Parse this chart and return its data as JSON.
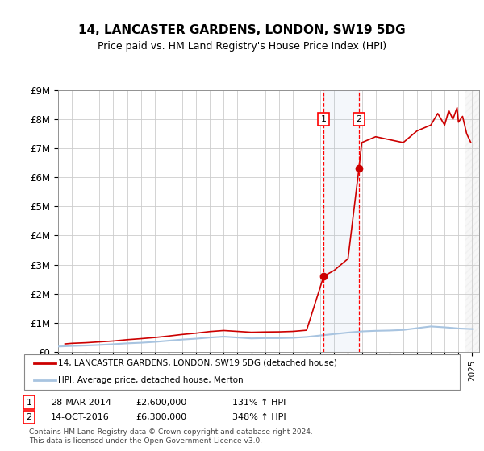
{
  "title": "14, LANCASTER GARDENS, LONDON, SW19 5DG",
  "subtitle": "Price paid vs. HM Land Registry's House Price Index (HPI)",
  "ylabel": "",
  "ylim": [
    0,
    9000000
  ],
  "yticks": [
    0,
    1000000,
    2000000,
    3000000,
    4000000,
    5000000,
    6000000,
    7000000,
    8000000,
    9000000
  ],
  "ytick_labels": [
    "£0",
    "£1M",
    "£2M",
    "£3M",
    "£4M",
    "£5M",
    "£6M",
    "£7M",
    "£8M",
    "£9M"
  ],
  "hpi_color": "#a8c4e0",
  "price_color": "#cc0000",
  "sale1_year": 2014.24,
  "sale1_price": 2600000,
  "sale1_label": "1",
  "sale1_date": "28-MAR-2014",
  "sale1_pct": "131%",
  "sale2_year": 2016.79,
  "sale2_price": 6300000,
  "sale2_label": "2",
  "sale2_date": "14-OCT-2016",
  "sale2_pct": "348%",
  "legend_line1": "14, LANCASTER GARDENS, LONDON, SW19 5DG (detached house)",
  "legend_line2": "HPI: Average price, detached house, Merton",
  "footer": "Contains HM Land Registry data © Crown copyright and database right 2024.\nThis data is licensed under the Open Government Licence v3.0.",
  "hpi_years": [
    1995,
    1996,
    1997,
    1998,
    1999,
    2000,
    2001,
    2002,
    2003,
    2004,
    2005,
    2006,
    2007,
    2008,
    2009,
    2010,
    2011,
    2012,
    2013,
    2014,
    2015,
    2016,
    2017,
    2018,
    2019,
    2020,
    2021,
    2022,
    2023,
    2024,
    2025
  ],
  "hpi_values": [
    180000,
    200000,
    215000,
    235000,
    260000,
    290000,
    310000,
    340000,
    380000,
    420000,
    450000,
    490000,
    520000,
    490000,
    460000,
    470000,
    470000,
    480000,
    510000,
    560000,
    610000,
    660000,
    700000,
    720000,
    730000,
    750000,
    810000,
    870000,
    840000,
    800000,
    780000
  ],
  "price_years": [
    1995.5,
    1996,
    1997,
    1998,
    1999,
    2000,
    2001,
    2002,
    2003,
    2004,
    2005,
    2006,
    2007,
    2008,
    2009,
    2010,
    2011,
    2012,
    2013,
    2014.24,
    2015,
    2016,
    2016.79,
    2017,
    2018,
    2019,
    2020,
    2021,
    2022,
    2022.5,
    2023,
    2023.3,
    2023.6,
    2023.9,
    2024,
    2024.3,
    2024.6,
    2024.9
  ],
  "price_values": [
    270000,
    290000,
    310000,
    340000,
    370000,
    415000,
    450000,
    490000,
    540000,
    595000,
    640000,
    695000,
    730000,
    700000,
    670000,
    680000,
    685000,
    700000,
    740000,
    2600000,
    2800000,
    3200000,
    6300000,
    7200000,
    7400000,
    7300000,
    7200000,
    7600000,
    7800000,
    8200000,
    7800000,
    8300000,
    8000000,
    8400000,
    7900000,
    8100000,
    7500000,
    7200000
  ],
  "background_hatch_start": 2024.5,
  "xmin": 1995,
  "xmax": 2025.5
}
